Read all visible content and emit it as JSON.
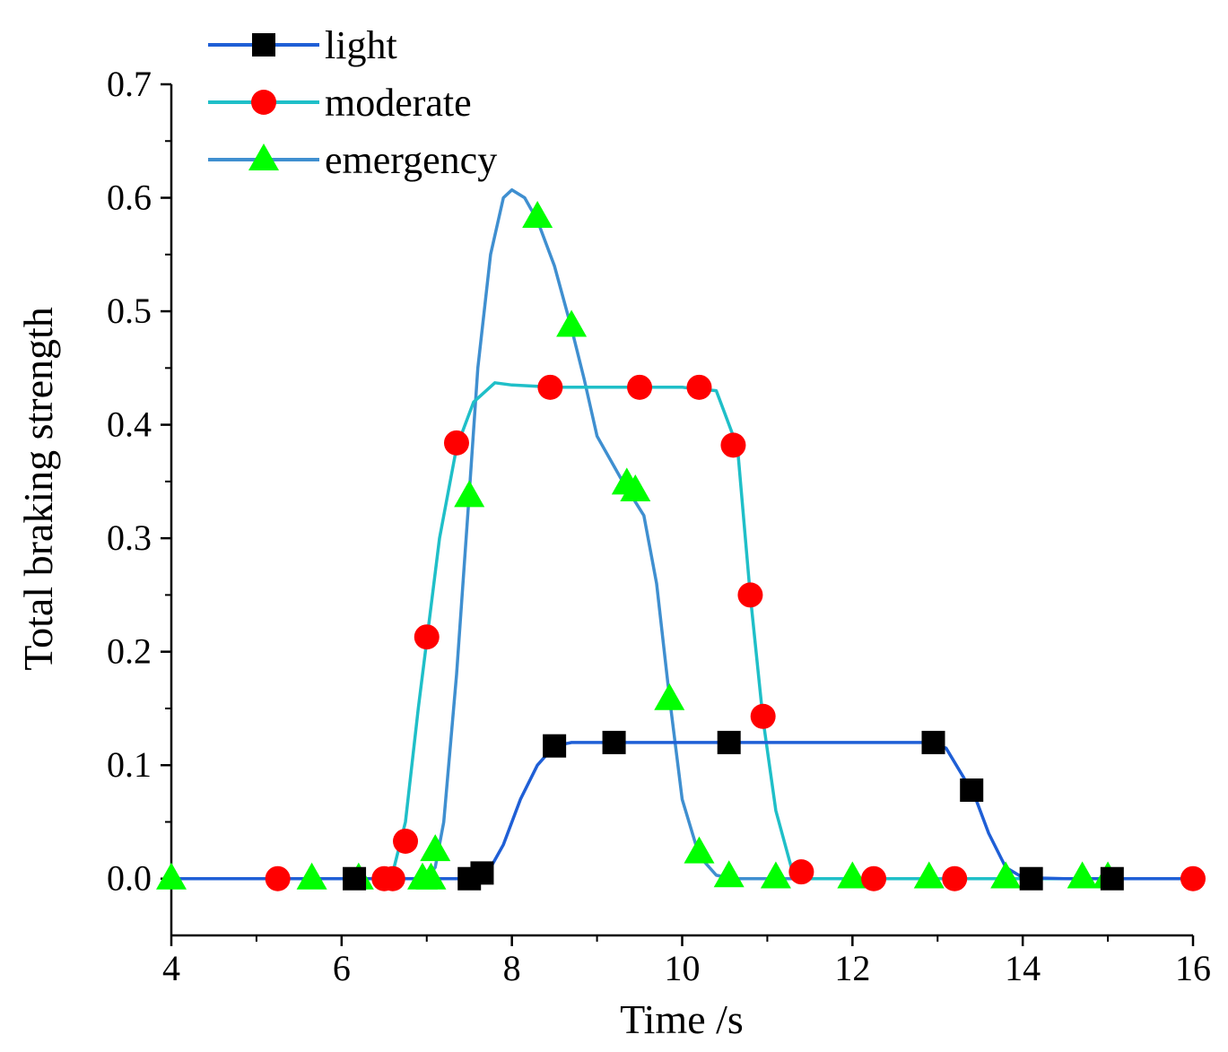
{
  "chart_data": {
    "type": "line",
    "title": "",
    "xlabel": "Time  /s",
    "ylabel": "Total braking strength",
    "xlim": [
      4,
      16
    ],
    "ylim": [
      -0.05,
      0.7
    ],
    "xticks": [
      "4",
      "6",
      "8",
      "10",
      "12",
      "14",
      "16"
    ],
    "yticks": [
      "0.0",
      "0.1",
      "0.2",
      "0.3",
      "0.4",
      "0.5",
      "0.6",
      "0.7"
    ],
    "legend_position": "top-left",
    "series": [
      {
        "name": "light",
        "marker": "square",
        "line_color": "#1f5fd6",
        "marker_color": "#000000",
        "line": [
          [
            4,
            0
          ],
          [
            6,
            0
          ],
          [
            7.5,
            0
          ],
          [
            7.7,
            0.003
          ],
          [
            7.9,
            0.03
          ],
          [
            8.1,
            0.07
          ],
          [
            8.3,
            0.1
          ],
          [
            8.5,
            0.117
          ],
          [
            8.7,
            0.12
          ],
          [
            9,
            0.12
          ],
          [
            10,
            0.12
          ],
          [
            11,
            0.12
          ],
          [
            12,
            0.12
          ],
          [
            12.9,
            0.12
          ],
          [
            13.1,
            0.115
          ],
          [
            13.3,
            0.09
          ],
          [
            13.45,
            0.07
          ],
          [
            13.6,
            0.04
          ],
          [
            13.8,
            0.01
          ],
          [
            14,
            0.001
          ],
          [
            14.5,
            0
          ],
          [
            16,
            0
          ]
        ],
        "markers": [
          [
            6.15,
            0
          ],
          [
            7.5,
            0
          ],
          [
            7.65,
            0.005
          ],
          [
            8.5,
            0.117
          ],
          [
            9.2,
            0.12
          ],
          [
            10.55,
            0.12
          ],
          [
            12.95,
            0.12
          ],
          [
            13.4,
            0.078
          ],
          [
            14.1,
            0
          ],
          [
            15.05,
            0
          ]
        ]
      },
      {
        "name": "moderate",
        "marker": "circle",
        "line_color": "#1fbfc8",
        "marker_color": "#ff0000",
        "line": [
          [
            4,
            0
          ],
          [
            6,
            0
          ],
          [
            6.5,
            0
          ],
          [
            6.6,
            0.005
          ],
          [
            6.75,
            0.05
          ],
          [
            6.9,
            0.15
          ],
          [
            7,
            0.21
          ],
          [
            7.15,
            0.3
          ],
          [
            7.35,
            0.38
          ],
          [
            7.55,
            0.42
          ],
          [
            7.8,
            0.437
          ],
          [
            8,
            0.435
          ],
          [
            8.5,
            0.433
          ],
          [
            9,
            0.433
          ],
          [
            10,
            0.433
          ],
          [
            10.4,
            0.43
          ],
          [
            10.5,
            0.41
          ],
          [
            10.65,
            0.38
          ],
          [
            10.8,
            0.25
          ],
          [
            10.95,
            0.14
          ],
          [
            11.1,
            0.06
          ],
          [
            11.3,
            0.005
          ],
          [
            11.5,
            0
          ],
          [
            16,
            0
          ]
        ],
        "markers": [
          [
            5.25,
            0
          ],
          [
            6.5,
            0
          ],
          [
            6.6,
            0
          ],
          [
            6.75,
            0.033
          ],
          [
            7,
            0.213
          ],
          [
            7.35,
            0.384
          ],
          [
            8.45,
            0.433
          ],
          [
            9.5,
            0.433
          ],
          [
            10.2,
            0.433
          ],
          [
            10.6,
            0.382
          ],
          [
            10.8,
            0.25
          ],
          [
            10.95,
            0.143
          ],
          [
            11.4,
            0.006
          ],
          [
            12.25,
            0
          ],
          [
            13.2,
            0
          ],
          [
            16,
            0
          ]
        ]
      },
      {
        "name": "emergency",
        "marker": "triangle",
        "line_color": "#3f8fd0",
        "marker_color": "#00ff00",
        "line": [
          [
            4,
            0
          ],
          [
            6,
            0
          ],
          [
            7,
            0
          ],
          [
            7.1,
            0.01
          ],
          [
            7.2,
            0.05
          ],
          [
            7.35,
            0.18
          ],
          [
            7.5,
            0.34
          ],
          [
            7.6,
            0.45
          ],
          [
            7.75,
            0.55
          ],
          [
            7.9,
            0.6
          ],
          [
            8,
            0.607
          ],
          [
            8.15,
            0.6
          ],
          [
            8.3,
            0.58
          ],
          [
            8.5,
            0.54
          ],
          [
            8.7,
            0.485
          ],
          [
            8.85,
            0.44
          ],
          [
            9,
            0.39
          ],
          [
            9.3,
            0.35
          ],
          [
            9.55,
            0.32
          ],
          [
            9.7,
            0.26
          ],
          [
            9.85,
            0.16
          ],
          [
            10,
            0.07
          ],
          [
            10.2,
            0.02
          ],
          [
            10.4,
            0.003
          ],
          [
            10.6,
            0
          ],
          [
            16,
            0
          ]
        ],
        "markers": [
          [
            4,
            0
          ],
          [
            5.65,
            0
          ],
          [
            6.2,
            0
          ],
          [
            6.95,
            0
          ],
          [
            7.05,
            0
          ],
          [
            7.1,
            0.025
          ],
          [
            7.5,
            0.337
          ],
          [
            8.3,
            0.583
          ],
          [
            8.7,
            0.487
          ],
          [
            9.35,
            0.348
          ],
          [
            9.45,
            0.342
          ],
          [
            9.85,
            0.158
          ],
          [
            10.2,
            0.023
          ],
          [
            10.55,
            0.002
          ],
          [
            11.1,
            0.001
          ],
          [
            12,
            0.001
          ],
          [
            12.9,
            0.001
          ],
          [
            13.8,
            0.001
          ],
          [
            14.7,
            0.001
          ],
          [
            15,
            0.001
          ]
        ]
      }
    ]
  }
}
